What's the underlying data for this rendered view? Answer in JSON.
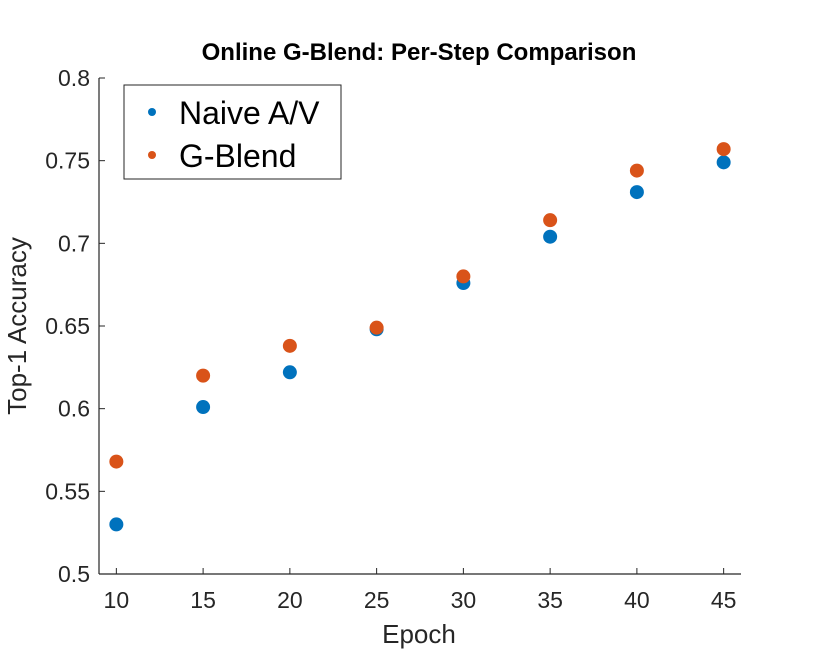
{
  "chart_data": {
    "type": "scatter",
    "title": "Online G-Blend: Per-Step Comparison",
    "xlabel": "Epoch",
    "ylabel": "Top-1 Accuracy",
    "x": [
      10,
      15,
      20,
      25,
      30,
      35,
      40,
      45
    ],
    "xticks": [
      "10",
      "15",
      "20",
      "25",
      "30",
      "35",
      "40",
      "45"
    ],
    "yticks": [
      "0.5",
      "0.55",
      "0.6",
      "0.65",
      "0.7",
      "0.75",
      "0.8"
    ],
    "xlim": [
      9,
      46
    ],
    "ylim": [
      0.5,
      0.8
    ],
    "grid": false,
    "legend_position": "top-left",
    "series": [
      {
        "name": "Naive A/V",
        "color": "#0072BD",
        "values": [
          0.53,
          0.601,
          0.622,
          0.648,
          0.676,
          0.704,
          0.731,
          0.749
        ]
      },
      {
        "name": "G-Blend",
        "color": "#D95319",
        "values": [
          0.568,
          0.62,
          0.638,
          0.649,
          0.68,
          0.714,
          0.744,
          0.757
        ]
      }
    ]
  }
}
